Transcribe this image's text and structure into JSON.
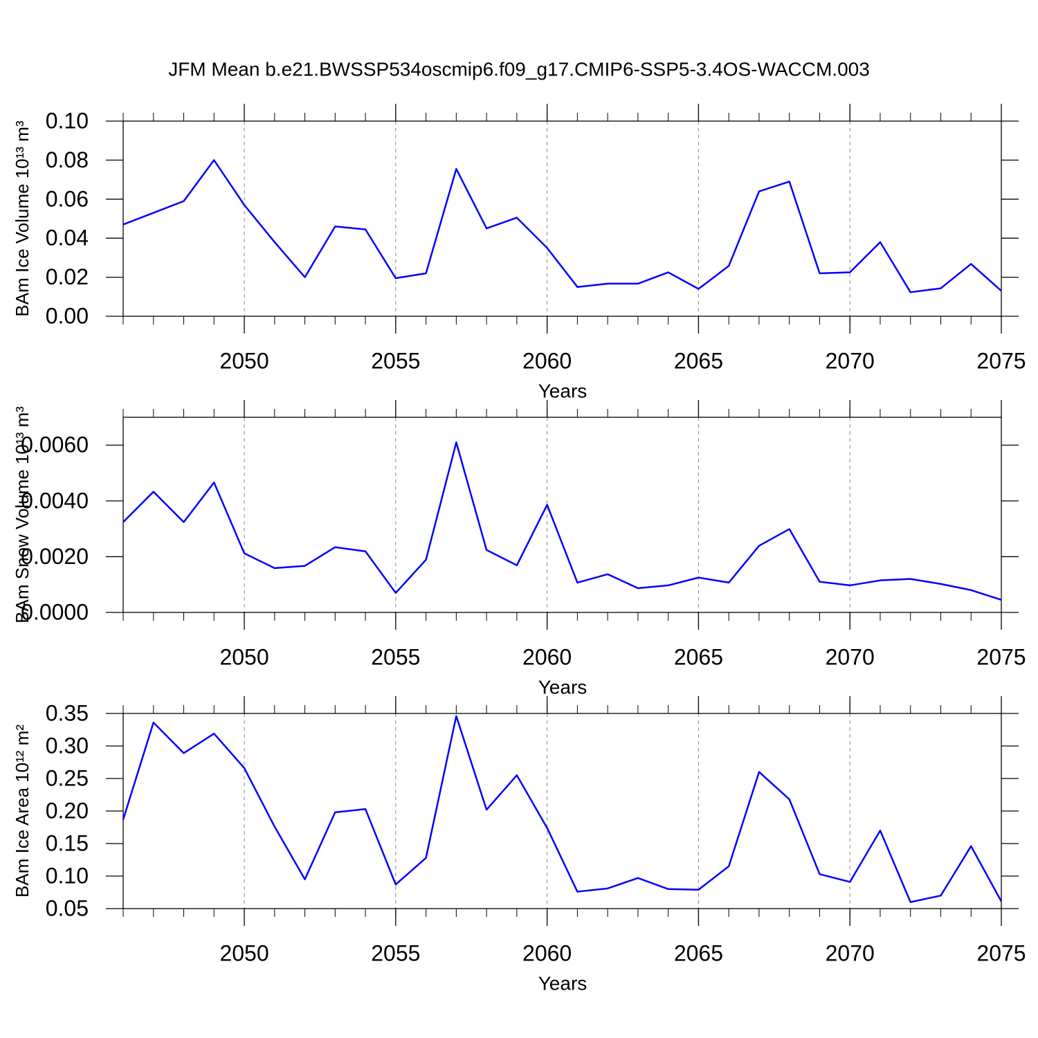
{
  "chart_data": [
    {
      "type": "line",
      "title": "JFM Mean b.e21.BWSSP534oscmip6.f09_g17.CMIP6-SSP5-3.4OS-WACCM.003",
      "ylabel": "BAm Ice Volume 10¹³ m³",
      "xlabel": "Years",
      "color": "#0000ff",
      "grid": true,
      "x": [
        2046,
        2047,
        2048,
        2049,
        2050,
        2051,
        2052,
        2053,
        2054,
        2055,
        2056,
        2057,
        2058,
        2059,
        2060,
        2061,
        2062,
        2063,
        2064,
        2065,
        2066,
        2067,
        2068,
        2069,
        2070,
        2071,
        2072,
        2073,
        2074,
        2075
      ],
      "values": [
        0.047,
        0.053,
        0.059,
        0.08,
        0.057,
        0.038,
        0.02,
        0.046,
        0.0445,
        0.0195,
        0.022,
        0.0755,
        0.045,
        0.0505,
        0.035,
        0.015,
        0.0167,
        0.0167,
        0.0225,
        0.014,
        0.0258,
        0.064,
        0.069,
        0.022,
        0.0225,
        0.038,
        0.0123,
        0.0143,
        0.0268,
        0.013
      ],
      "xlim": [
        2046,
        2075
      ],
      "xticks": [
        2050,
        2055,
        2060,
        2065,
        2070,
        2075
      ],
      "ylim": [
        0,
        0.1
      ],
      "yticks": [
        {
          "value": 0,
          "label": "0.00"
        },
        {
          "value": 0.02,
          "label": "0.02"
        },
        {
          "value": 0.04,
          "label": "0.04"
        },
        {
          "value": 0.06,
          "label": "0.06"
        },
        {
          "value": 0.08,
          "label": "0.08"
        },
        {
          "value": 0.1,
          "label": "0.10"
        }
      ]
    },
    {
      "type": "line",
      "ylabel": "BAm Snow Volume 10¹³ m³",
      "xlabel": "Years",
      "color": "#0000ff",
      "grid": true,
      "x": [
        2046,
        2047,
        2048,
        2049,
        2050,
        2051,
        2052,
        2053,
        2054,
        2055,
        2056,
        2057,
        2058,
        2059,
        2060,
        2061,
        2062,
        2063,
        2064,
        2065,
        2066,
        2067,
        2068,
        2069,
        2070,
        2071,
        2072,
        2073,
        2074,
        2075
      ],
      "values": [
        0.00324,
        0.00433,
        0.00324,
        0.00466,
        0.00212,
        0.00159,
        0.00167,
        0.00234,
        0.00219,
        0.0007,
        0.00189,
        0.0061,
        0.00224,
        0.00169,
        0.00386,
        0.00107,
        0.00137,
        0.00087,
        0.00097,
        0.00125,
        0.00107,
        0.00239,
        0.00299,
        0.0011,
        0.00097,
        0.00115,
        0.0012,
        0.00102,
        0.0008,
        0.00045
      ],
      "xlim": [
        2046,
        2075
      ],
      "xticks": [
        2050,
        2055,
        2060,
        2065,
        2070,
        2075
      ],
      "ylim": [
        0,
        0.007
      ],
      "yticks": [
        {
          "value": 0,
          "label": "0.0000"
        },
        {
          "value": 0.002,
          "label": "0.0020"
        },
        {
          "value": 0.004,
          "label": "0.0040"
        },
        {
          "value": 0.006,
          "label": "0.0060"
        }
      ]
    },
    {
      "type": "line",
      "ylabel": "BAm Ice Area 10¹² m²",
      "xlabel": "Years",
      "color": "#0000ff",
      "grid": true,
      "x": [
        2046,
        2047,
        2048,
        2049,
        2050,
        2051,
        2052,
        2053,
        2054,
        2055,
        2056,
        2057,
        2058,
        2059,
        2060,
        2061,
        2062,
        2063,
        2064,
        2065,
        2066,
        2067,
        2068,
        2069,
        2070,
        2071,
        2072,
        2073,
        2074,
        2075
      ],
      "values": [
        0.187,
        0.336,
        0.289,
        0.319,
        0.266,
        0.176,
        0.095,
        0.198,
        0.203,
        0.087,
        0.128,
        0.346,
        0.202,
        0.255,
        0.174,
        0.076,
        0.081,
        0.097,
        0.08,
        0.079,
        0.115,
        0.26,
        0.218,
        0.103,
        0.091,
        0.17,
        0.06,
        0.07,
        0.146,
        0.061
      ],
      "xlim": [
        2046,
        2075
      ],
      "xticks": [
        2050,
        2055,
        2060,
        2065,
        2070,
        2075
      ],
      "ylim": [
        0.05,
        0.35
      ],
      "yticks": [
        {
          "value": 0.05,
          "label": "0.05"
        },
        {
          "value": 0.1,
          "label": "0.10"
        },
        {
          "value": 0.15,
          "label": "0.15"
        },
        {
          "value": 0.2,
          "label": "0.20"
        },
        {
          "value": 0.25,
          "label": "0.25"
        },
        {
          "value": 0.3,
          "label": "0.30"
        },
        {
          "value": 0.35,
          "label": "0.35"
        }
      ]
    }
  ]
}
